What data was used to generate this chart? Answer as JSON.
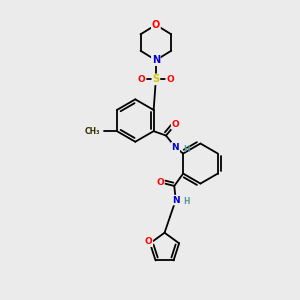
{
  "bg_color": "#ebebeb",
  "atom_colors": {
    "O": "#ff0000",
    "N": "#0000cd",
    "S": "#cccc00",
    "C": "#000000",
    "H": "#5a9a9a"
  },
  "lw": 1.3
}
